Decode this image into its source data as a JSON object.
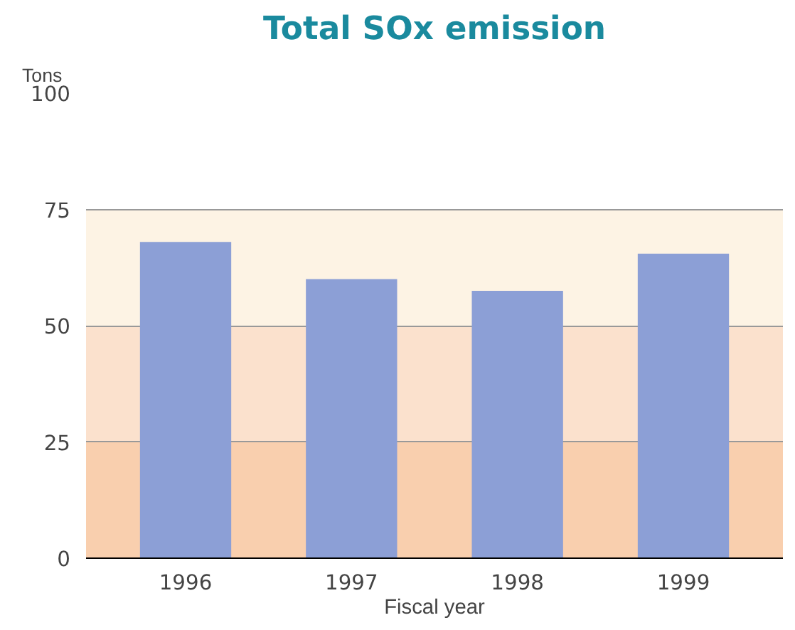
{
  "chart_data": {
    "type": "bar",
    "title": "Total SOx emission",
    "ylabel": "Tons",
    "xlabel": "Fiscal year",
    "categories": [
      "1996",
      "1997",
      "1998",
      "1999"
    ],
    "values": [
      68,
      60,
      57.5,
      65.5
    ],
    "color": "#8c9fd6",
    "ylim": [
      0,
      100
    ],
    "yticks": [
      0,
      25,
      50,
      75,
      100
    ],
    "grid": "y",
    "bands": [
      {
        "axis": "y",
        "from": 0,
        "to": 25,
        "label": null,
        "color": "#f9cfae"
      },
      {
        "axis": "y",
        "from": 25,
        "to": 50,
        "label": null,
        "color": "#fbe1cd"
      },
      {
        "axis": "y",
        "from": 50,
        "to": 75,
        "label": null,
        "color": "#fdf3e4"
      }
    ]
  }
}
